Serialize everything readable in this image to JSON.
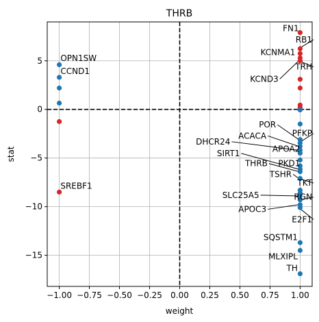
{
  "chart_data": {
    "type": "scatter",
    "title": "THRB",
    "xlabel": "weight",
    "ylabel": "stat",
    "xlim": [
      -1.1,
      1.1
    ],
    "ylim": [
      -18.2,
      9.0
    ],
    "xticks": [
      -1.0,
      -0.75,
      -0.5,
      -0.25,
      0.0,
      0.25,
      0.5,
      0.75,
      1.0
    ],
    "xtick_labels": [
      "−1.00",
      "−0.75",
      "−0.50",
      "−0.25",
      "0.00",
      "0.25",
      "0.50",
      "0.75",
      "1.00"
    ],
    "yticks": [
      -15,
      -10,
      -5,
      0,
      5
    ],
    "ytick_labels": [
      "−15",
      "−10",
      "−5",
      "0",
      "5"
    ],
    "grid": true,
    "reference_lines": {
      "x": 0,
      "y": 0,
      "style": "dashed",
      "color": "#000000"
    },
    "colors": {
      "positive": "#d62728",
      "negative": "#1f77b4"
    },
    "points": [
      {
        "x": -1,
        "y": 4.6,
        "color": "#1f77b4"
      },
      {
        "x": -1,
        "y": 3.3,
        "color": "#1f77b4"
      },
      {
        "x": -1,
        "y": 2.2,
        "color": "#1f77b4"
      },
      {
        "x": -1,
        "y": 0.65,
        "color": "#1f77b4"
      },
      {
        "x": -1,
        "y": -1.25,
        "color": "#d62728"
      },
      {
        "x": -1,
        "y": -8.5,
        "color": "#d62728"
      },
      {
        "x": 1,
        "y": 7.9,
        "color": "#d62728"
      },
      {
        "x": 1,
        "y": 6.25,
        "color": "#d62728"
      },
      {
        "x": 1,
        "y": 5.75,
        "color": "#d62728"
      },
      {
        "x": 1,
        "y": 5.3,
        "color": "#d62728"
      },
      {
        "x": 1,
        "y": 5.0,
        "color": "#d62728"
      },
      {
        "x": 1,
        "y": 3.1,
        "color": "#d62728"
      },
      {
        "x": 1,
        "y": 2.2,
        "color": "#d62728"
      },
      {
        "x": 1,
        "y": 0.45,
        "color": "#d62728"
      },
      {
        "x": 1,
        "y": 0.2,
        "color": "#d62728"
      },
      {
        "x": 1,
        "y": -0.05,
        "color": "#1f77b4"
      },
      {
        "x": 1,
        "y": -1.5,
        "color": "#1f77b4"
      },
      {
        "x": 1,
        "y": -3.1,
        "color": "#1f77b4"
      },
      {
        "x": 1,
        "y": -3.45,
        "color": "#1f77b4"
      },
      {
        "x": 1,
        "y": -3.8,
        "color": "#1f77b4"
      },
      {
        "x": 1,
        "y": -4.2,
        "color": "#1f77b4"
      },
      {
        "x": 1,
        "y": -4.5,
        "color": "#1f77b4"
      },
      {
        "x": 1,
        "y": -5.2,
        "color": "#1f77b4"
      },
      {
        "x": 1,
        "y": -5.8,
        "color": "#1f77b4"
      },
      {
        "x": 1,
        "y": -6.15,
        "color": "#1f77b4"
      },
      {
        "x": 1,
        "y": -6.4,
        "color": "#1f77b4"
      },
      {
        "x": 1,
        "y": -7.1,
        "color": "#1f77b4"
      },
      {
        "x": 1,
        "y": -8.3,
        "color": "#1f77b4"
      },
      {
        "x": 1,
        "y": -8.6,
        "color": "#1f77b4"
      },
      {
        "x": 1,
        "y": -8.9,
        "color": "#1f77b4"
      },
      {
        "x": 1,
        "y": -9.3,
        "color": "#1f77b4"
      },
      {
        "x": 1,
        "y": -9.8,
        "color": "#1f77b4"
      },
      {
        "x": 1,
        "y": -10.1,
        "color": "#1f77b4"
      },
      {
        "x": 1,
        "y": -13.7,
        "color": "#1f77b4"
      },
      {
        "x": 1,
        "y": -14.5,
        "color": "#1f77b4"
      },
      {
        "x": 1,
        "y": -16.9,
        "color": "#1f77b4"
      }
    ],
    "annotations": [
      {
        "text": "OPN1SW",
        "x": -0.99,
        "y": 5.0,
        "anchor": "start",
        "px": -1,
        "py": 4.6
      },
      {
        "text": "CCND1",
        "x": -0.99,
        "y": 3.65,
        "anchor": "start",
        "px": -1,
        "py": 3.3
      },
      {
        "text": "SREBF1",
        "x": -0.99,
        "y": -8.15,
        "anchor": "start",
        "px": -1,
        "py": -8.5
      },
      {
        "text": "FN1",
        "x": 0.99,
        "y": 8.05,
        "anchor": "end",
        "px": 1,
        "py": 7.9
      },
      {
        "text": "RB1",
        "x": 1.1,
        "y": 6.9,
        "anchor": "end",
        "px": 1,
        "py": 6.25
      },
      {
        "text": "KCNMA1",
        "x": 0.96,
        "y": 5.6,
        "anchor": "end",
        "px": 1,
        "py": 5.3
      },
      {
        "text": "TRH",
        "x": 1.1,
        "y": 4.1,
        "anchor": "end",
        "px": 1,
        "py": 5.0
      },
      {
        "text": "KCND3",
        "x": 0.82,
        "y": 2.85,
        "anchor": "end",
        "px": 1,
        "py": 5.0
      },
      {
        "text": "POR",
        "x": 0.8,
        "y": -1.85,
        "anchor": "end",
        "px": 1,
        "py": -3.1
      },
      {
        "text": "PFKP",
        "x": 1.1,
        "y": -2.75,
        "anchor": "end",
        "px": 1,
        "py": -3.45
      },
      {
        "text": "ACACA",
        "x": 0.72,
        "y": -3.0,
        "anchor": "end",
        "px": 1,
        "py": -3.8
      },
      {
        "text": "DHCR24",
        "x": 0.42,
        "y": -3.6,
        "anchor": "end",
        "px": 1,
        "py": -4.2
      },
      {
        "text": "APOA2",
        "x": 1.0,
        "y": -4.35,
        "anchor": "end",
        "px": 1,
        "py": -4.5
      },
      {
        "text": "SIRT1",
        "x": 0.5,
        "y": -4.8,
        "anchor": "end",
        "px": 1,
        "py": -6.15
      },
      {
        "text": "PKD1",
        "x": 1.0,
        "y": -5.85,
        "anchor": "end",
        "px": 1,
        "py": -6.15
      },
      {
        "text": "THRB",
        "x": 0.73,
        "y": -5.85,
        "anchor": "end",
        "px": 1,
        "py": -6.4
      },
      {
        "text": "TSHR",
        "x": 0.93,
        "y": -6.95,
        "anchor": "end",
        "px": 1,
        "py": -7.1
      },
      {
        "text": "TKT",
        "x": 1.1,
        "y": -7.85,
        "anchor": "end",
        "px": 1,
        "py": -7.1
      },
      {
        "text": "SLC25A5",
        "x": 0.66,
        "y": -9.1,
        "anchor": "end",
        "px": 1,
        "py": -8.9
      },
      {
        "text": "RGN",
        "x": 1.1,
        "y": -9.3,
        "anchor": "end",
        "px": 1,
        "py": -9.3
      },
      {
        "text": "APOC3",
        "x": 0.72,
        "y": -10.55,
        "anchor": "end",
        "px": 1,
        "py": -9.8
      },
      {
        "text": "E2F1",
        "x": 1.1,
        "y": -11.6,
        "anchor": "end",
        "px": 1,
        "py": -10.1
      },
      {
        "text": "SQSTM1",
        "x": 0.98,
        "y": -13.45,
        "anchor": "end",
        "px": 1,
        "py": -13.7
      },
      {
        "text": "MLXIPL",
        "x": 0.98,
        "y": -15.4,
        "anchor": "end",
        "px": 1,
        "py": -14.5
      },
      {
        "text": "TH",
        "x": 0.98,
        "y": -16.6,
        "anchor": "end",
        "px": 1,
        "py": -16.9
      }
    ]
  }
}
